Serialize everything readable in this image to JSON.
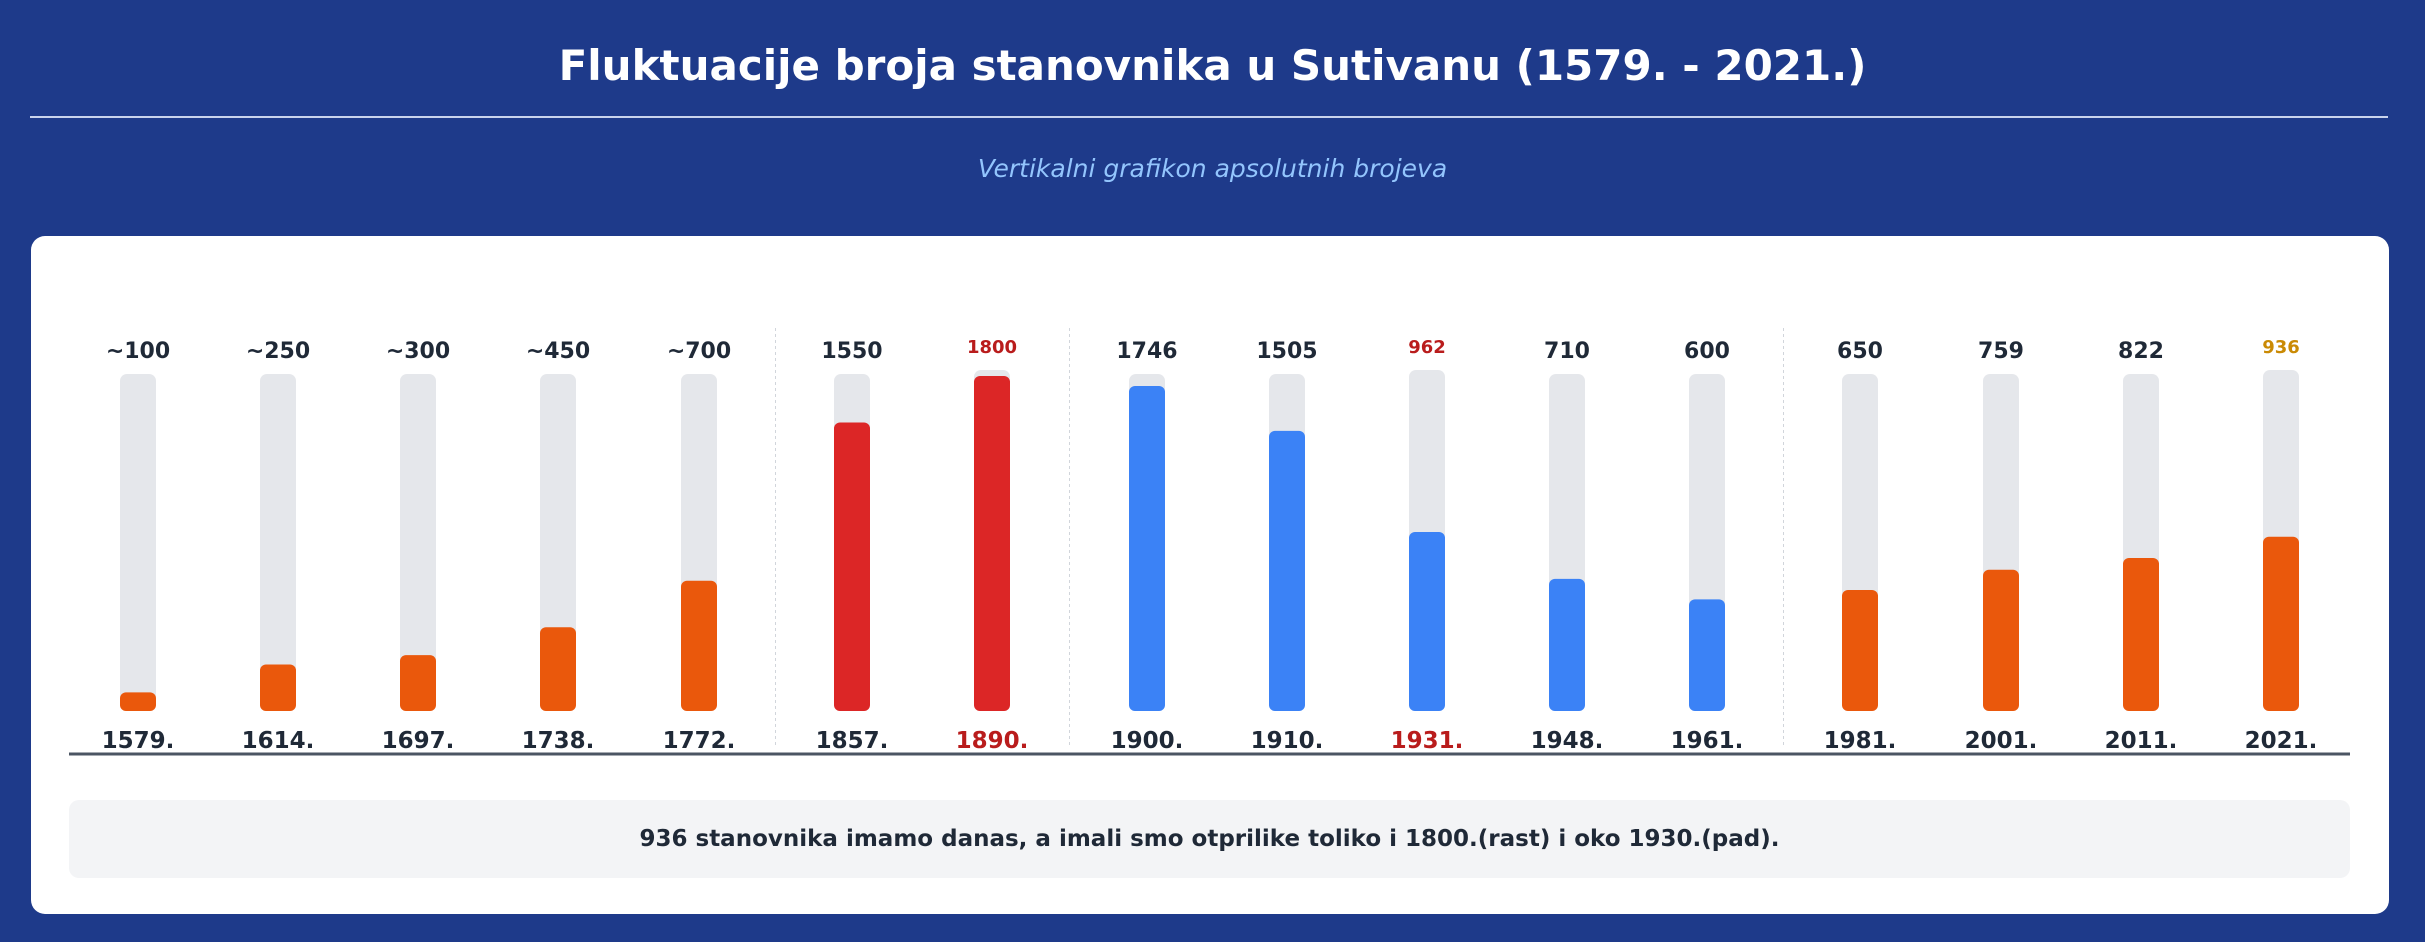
{
  "header": {
    "title": "Fluktuacije broja stanovnika u Sutivanu (1579. - 2021.)",
    "subtitle": "Vertikalni grafikon apsolutnih brojeva"
  },
  "chart_data": {
    "type": "bar",
    "title": "Fluktuacije broja stanovnika u Sutivanu (1579. - 2021.)",
    "subtitle": "Vertikalni grafikon apsolutnih brojeva",
    "xlabel": "",
    "ylabel": "",
    "ylim": [
      0,
      1800
    ],
    "categories": [
      "1579.",
      "1614.",
      "1697.",
      "1738.",
      "1772.",
      "1857.",
      "1890.",
      "1900.",
      "1910.",
      "1931.",
      "1948.",
      "1961.",
      "1981.",
      "2001.",
      "2011.",
      "2021."
    ],
    "values": [
      100,
      250,
      300,
      450,
      700,
      1550,
      1800,
      1746,
      1505,
      962,
      710,
      600,
      650,
      759,
      822,
      936
    ],
    "value_labels": [
      "~100",
      "~250",
      "~300",
      "~450",
      "~700",
      "1550",
      "1800",
      "1746",
      "1505",
      "962",
      "710",
      "600",
      "650",
      "759",
      "822",
      "936"
    ],
    "bar_colors": [
      "#ea580c",
      "#ea580c",
      "#ea580c",
      "#ea580c",
      "#ea580c",
      "#dc2626",
      "#dc2626",
      "#3b82f6",
      "#3b82f6",
      "#3b82f6",
      "#3b82f6",
      "#3b82f6",
      "#ea580c",
      "#ea580c",
      "#ea580c",
      "#ea580c"
    ],
    "highlighted": [
      6,
      9,
      15
    ],
    "groups": [
      5,
      2,
      5,
      4
    ],
    "grid": false,
    "legend": "none"
  },
  "colors": {
    "background": "#1e3a8a",
    "track": "#e5e7eb",
    "growth": "#ea580c",
    "peak": "#dc2626",
    "decline": "#3b82f6",
    "highlight_red": "#b91c1c",
    "highlight_gold": "#ca8a04",
    "text_dark": "#1f2937"
  },
  "note": {
    "text": "936 stanovnika imamo danas, a imali smo otprilike toliko i 1800.(rast) i oko 1930.(pad)."
  }
}
